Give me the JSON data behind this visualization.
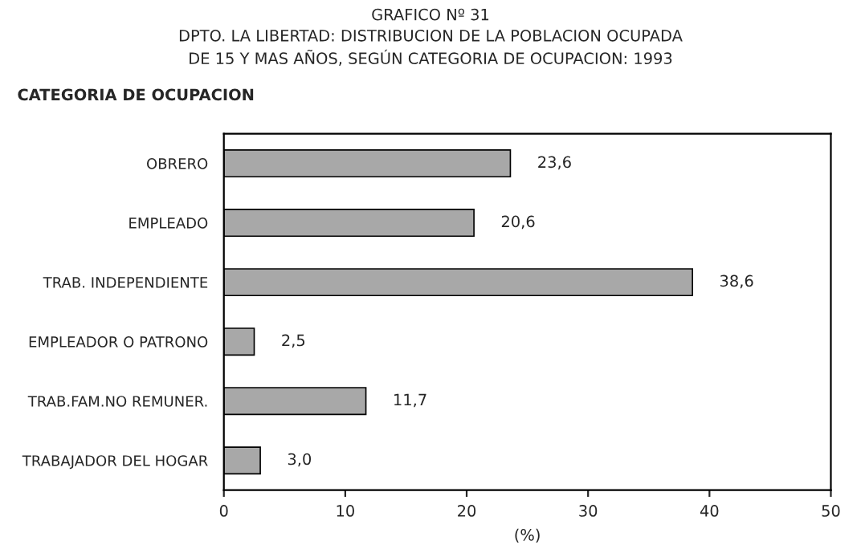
{
  "chart_data": {
    "type": "bar",
    "orientation": "horizontal",
    "title": "GRAFICO Nº 31\nDPTO. LA LIBERTAD: DISTRIBUCION DE LA POBLACION OCUPADA\nDE 15 Y MAS AÑOS, SEGÚN CATEGORIA DE OCUPACION: 1993",
    "ylabel": "CATEGORIA DE OCUPACION",
    "xlabel": "(%)",
    "categories": [
      "OBRERO",
      "EMPLEADO",
      "TRAB. INDEPENDIENTE",
      "EMPLEADOR O PATRONO",
      "TRAB.FAM.NO REMUNER.",
      "TRABAJADOR DEL HOGAR"
    ],
    "values": [
      23.6,
      20.6,
      38.6,
      2.5,
      11.7,
      3.0
    ],
    "value_labels": [
      "23,6",
      "20,6",
      "38,6",
      "2,5",
      "11,7",
      "3,0"
    ],
    "color": "#a8a8a8",
    "xlim": [
      0,
      50
    ],
    "xticks": [
      0,
      10,
      20,
      30,
      40,
      50
    ],
    "grid": false,
    "legend": false
  }
}
